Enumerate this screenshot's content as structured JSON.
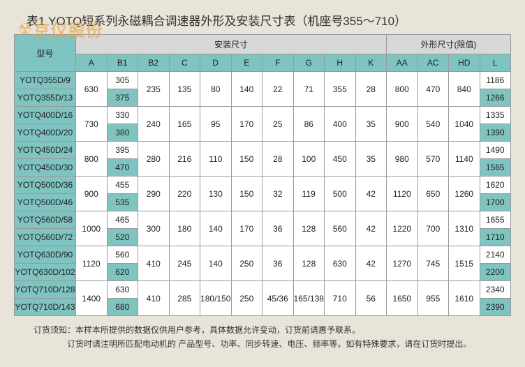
{
  "title": "表1  YOTQ短系列永磁耦合调速器外形及安装尺寸表（机座号355～710）",
  "watermark": {
    "icon": "☢",
    "text": "京仪股份"
  },
  "header": {
    "modelLabel": "型号",
    "group1": "安装尺寸",
    "group2": "外形尺寸(限值)",
    "cols": [
      "A",
      "B1",
      "B2",
      "C",
      "D",
      "E",
      "F",
      "G",
      "H",
      "K",
      "AA",
      "AC",
      "HD",
      "L"
    ]
  },
  "groups": [
    {
      "rows": [
        {
          "model": "YOTQ355D/9",
          "b1": "305",
          "l": "1186"
        },
        {
          "model": "YOTQ355D/13",
          "b1": "375",
          "l": "1266"
        }
      ],
      "a": "630",
      "b2": "235",
      "c": "135",
      "d": "80",
      "e": "140",
      "f": "22",
      "g": "71",
      "h": "355",
      "k": "28",
      "aa": "800",
      "ac": "470",
      "hd": "840"
    },
    {
      "rows": [
        {
          "model": "YOTQ400D/16",
          "b1": "330",
          "l": "1335"
        },
        {
          "model": "YOTQ400D/20",
          "b1": "380",
          "l": "1390"
        }
      ],
      "a": "730",
      "b2": "240",
      "c": "165",
      "d": "95",
      "e": "170",
      "f": "25",
      "g": "86",
      "h": "400",
      "k": "35",
      "aa": "900",
      "ac": "540",
      "hd": "1040"
    },
    {
      "rows": [
        {
          "model": "YOTQ450D/24",
          "b1": "395",
          "l": "1490"
        },
        {
          "model": "YOTQ450D/30",
          "b1": "470",
          "l": "1565"
        }
      ],
      "a": "800",
      "b2": "280",
      "c": "216",
      "d": "110",
      "e": "150",
      "f": "28",
      "g": "100",
      "h": "450",
      "k": "35",
      "aa": "980",
      "ac": "570",
      "hd": "1140"
    },
    {
      "rows": [
        {
          "model": "YOTQ500D/36",
          "b1": "455",
          "l": "1620"
        },
        {
          "model": "YOTQ500D/46",
          "b1": "535",
          "l": "1700"
        }
      ],
      "a": "900",
      "b2": "290",
      "c": "220",
      "d": "130",
      "e": "150",
      "f": "32",
      "g": "119",
      "h": "500",
      "k": "42",
      "aa": "1120",
      "ac": "650",
      "hd": "1260"
    },
    {
      "rows": [
        {
          "model": "YOTQ560D/58",
          "b1": "465",
          "l": "1655"
        },
        {
          "model": "YOTQ560D/72",
          "b1": "520",
          "l": "1710"
        }
      ],
      "a": "1000",
      "b2": "300",
      "c": "180",
      "d": "140",
      "e": "170",
      "f": "36",
      "g": "128",
      "h": "560",
      "k": "42",
      "aa": "1220",
      "ac": "700",
      "hd": "1310"
    },
    {
      "rows": [
        {
          "model": "YOTQ630D/90",
          "b1": "560",
          "l": "2140"
        },
        {
          "model": "YOTQ630D/102",
          "b1": "620",
          "l": "2200"
        }
      ],
      "a": "1120",
      "b2": "410",
      "c": "245",
      "d": "140",
      "e": "250",
      "f": "36",
      "g": "128",
      "h": "630",
      "k": "42",
      "aa": "1270",
      "ac": "745",
      "hd": "1515"
    },
    {
      "rows": [
        {
          "model": "YOTQ710D/128",
          "b1": "630",
          "l": "2340"
        },
        {
          "model": "YOTQ710D/143",
          "b1": "680",
          "l": "2390"
        }
      ],
      "a": "1400",
      "b2": "410",
      "c": "285",
      "d": "180/150",
      "e": "250",
      "f": "45/36",
      "g": "165/138",
      "h": "710",
      "k": "56",
      "aa": "1650",
      "ac": "955",
      "hd": "1610"
    }
  ],
  "footer": {
    "line1": "订货须知：本样本所提供的数据仅供用户参考，具体数据允许变动，订货前请惠予联系。",
    "line2": "订货时请注明所匹配电动机的  产品型号、功率、同步转速、电压、频率等。如有特殊要求，请在订货时提出。"
  },
  "colors": {
    "teal": "#7fc4c0",
    "gray": "#d8d8d8",
    "bg": "#e8e4d9",
    "border": "#999999",
    "text": "#222222",
    "watermark": "#e8a23a"
  }
}
